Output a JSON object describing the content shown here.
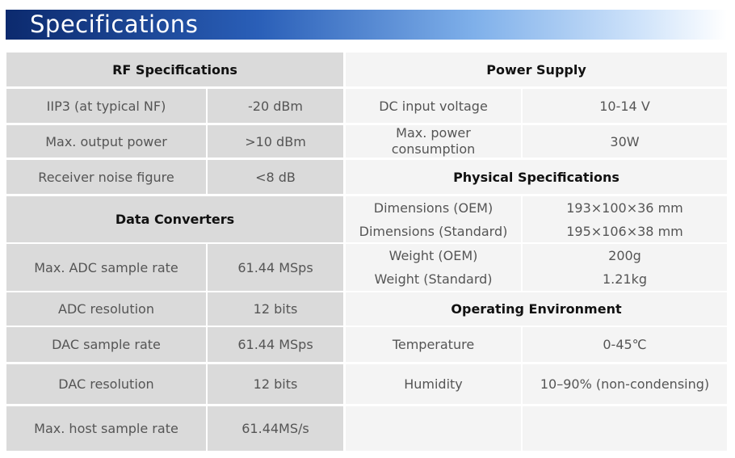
{
  "header": {
    "title": "Specifications"
  },
  "left": {
    "rows": [
      {
        "heading": "RF Specifications"
      },
      {
        "cells": [
          "IIP3 (at typical NF)",
          "-20 dBm"
        ]
      },
      {
        "cells": [
          "Max. output power",
          ">10 dBm"
        ]
      },
      {
        "cells": [
          "Receiver noise figure",
          "<8 dB"
        ]
      },
      {
        "heading": "Data Converters"
      },
      {
        "cells": [
          "Max. ADC sample rate",
          "61.44 MSps"
        ]
      },
      {
        "cells": [
          "ADC resolution",
          "12 bits"
        ]
      },
      {
        "cells": [
          "DAC sample rate",
          "61.44 MSps"
        ]
      },
      {
        "cells": [
          "DAC resolution",
          "12 bits"
        ]
      },
      {
        "cells": [
          "Max. host sample rate",
          "61.44MS/s"
        ]
      }
    ]
  },
  "right": {
    "rows": [
      {
        "heading": "Power Supply"
      },
      {
        "cells": [
          "DC input voltage",
          "10-14 V"
        ]
      },
      {
        "cells": [
          [
            "Max. power",
            "consumption"
          ],
          "30W"
        ]
      },
      {
        "heading": "Physical Specifications"
      },
      {
        "cells": [
          [
            "Dimensions (OEM)",
            "Dimensions (Standard)"
          ],
          [
            "193×100×36 mm",
            "195×106×38 mm"
          ]
        ]
      },
      {
        "cells": [
          [
            "Weight (OEM)",
            "Weight (Standard)"
          ],
          [
            "200g",
            "1.21kg"
          ]
        ]
      },
      {
        "heading": "Operating Environment"
      },
      {
        "cells": [
          "Temperature",
          "0-45℃"
        ]
      },
      {
        "cells": [
          "Humidity",
          "10–90% (non-condensing)"
        ]
      }
    ]
  }
}
